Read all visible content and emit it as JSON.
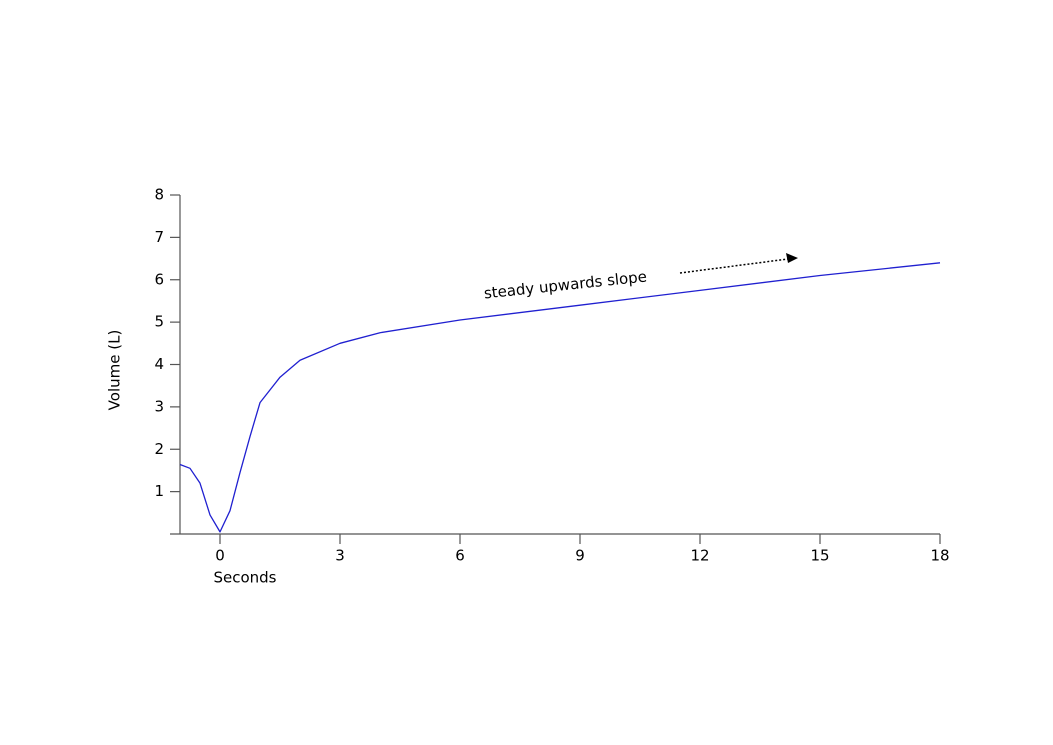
{
  "chart_data": {
    "type": "line",
    "x_label": "Seconds",
    "y_label": "Volume (L)",
    "annotation": "steady upwards slope",
    "x": [
      -1,
      -0.75,
      -0.5,
      -0.25,
      0,
      0.25,
      0.5,
      0.75,
      1,
      1.5,
      2,
      3,
      4,
      6,
      9,
      12,
      15,
      18
    ],
    "series": [
      {
        "color": "#2020d0",
        "values": [
          1.64,
          1.55,
          1.2,
          0.45,
          0.05,
          0.55,
          1.45,
          2.3,
          3.1,
          3.7,
          4.1,
          4.5,
          4.75,
          5.05,
          5.4,
          5.75,
          6.1,
          6.4
        ]
      }
    ],
    "xlim": [
      -1,
      18
    ],
    "xticks": [
      0,
      3,
      6,
      9,
      12,
      15,
      18
    ],
    "ylim": [
      0,
      8
    ],
    "yticks": [
      1,
      2,
      3,
      4,
      5,
      6,
      7,
      8
    ],
    "grid": false
  }
}
